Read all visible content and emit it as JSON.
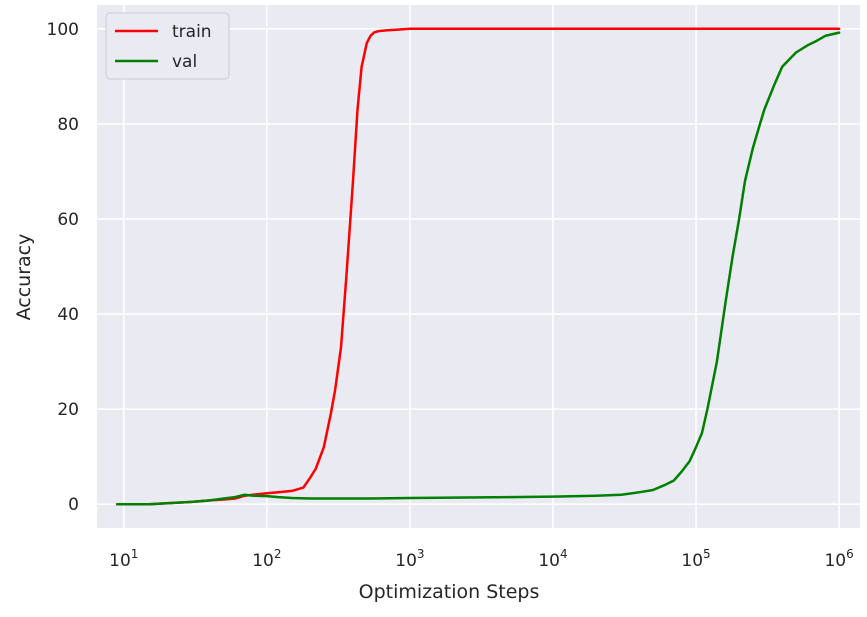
{
  "chart_data": {
    "type": "line",
    "xlabel": "Optimization Steps",
    "ylabel": "Accuracy",
    "x_scale": "log",
    "xlim": [
      6.5,
      1400000
    ],
    "ylim": [
      -5,
      105
    ],
    "x_ticks": [
      {
        "value": 10,
        "base": "10",
        "exp": "1"
      },
      {
        "value": 100,
        "base": "10",
        "exp": "2"
      },
      {
        "value": 1000,
        "base": "10",
        "exp": "3"
      },
      {
        "value": 10000,
        "base": "10",
        "exp": "4"
      },
      {
        "value": 100000,
        "base": "10",
        "exp": "5"
      },
      {
        "value": 1000000,
        "base": "10",
        "exp": "6"
      }
    ],
    "y_ticks": [
      0,
      20,
      40,
      60,
      80,
      100
    ],
    "grid": true,
    "legend": "top-left",
    "series": [
      {
        "name": "train",
        "color": "#ff0000",
        "x": [
          9,
          15,
          20,
          30,
          40,
          50,
          60,
          70,
          80,
          100,
          120,
          150,
          180,
          200,
          220,
          250,
          280,
          300,
          330,
          360,
          400,
          430,
          460,
          500,
          530,
          560,
          600,
          700,
          800,
          900,
          1000,
          1200,
          1500,
          2000,
          3000,
          5000,
          10000,
          30000,
          100000,
          300000,
          1000000
        ],
        "values": [
          0,
          0,
          0.2,
          0.5,
          0.8,
          1.0,
          1.2,
          1.8,
          2.0,
          2.3,
          2.5,
          2.8,
          3.5,
          5.5,
          7.5,
          12,
          19,
          24,
          33,
          48,
          68,
          83,
          92,
          97,
          98.5,
          99.2,
          99.5,
          99.7,
          99.8,
          99.9,
          100,
          100,
          100,
          100,
          100,
          100,
          100,
          100,
          100,
          100,
          100
        ]
      },
      {
        "name": "val",
        "color": "#008000",
        "x": [
          9,
          15,
          20,
          30,
          40,
          50,
          60,
          70,
          80,
          100,
          120,
          150,
          200,
          300,
          500,
          1000,
          2000,
          5000,
          10000,
          20000,
          30000,
          40000,
          50000,
          60000,
          70000,
          80000,
          90000,
          100000,
          110000,
          120000,
          140000,
          160000,
          180000,
          200000,
          220000,
          250000,
          280000,
          300000,
          350000,
          400000,
          500000,
          600000,
          700000,
          800000,
          1000000
        ],
        "values": [
          0,
          0,
          0.2,
          0.5,
          0.8,
          1.2,
          1.5,
          2.0,
          1.8,
          1.7,
          1.5,
          1.3,
          1.2,
          1.2,
          1.2,
          1.3,
          1.4,
          1.5,
          1.6,
          1.8,
          2.0,
          2.5,
          3.0,
          4.0,
          5.0,
          7.0,
          9.0,
          12,
          15,
          20,
          30,
          42,
          52,
          60,
          68,
          75,
          80,
          83,
          88,
          92,
          95,
          96.5,
          97.5,
          98.5,
          99.2
        ]
      }
    ]
  }
}
